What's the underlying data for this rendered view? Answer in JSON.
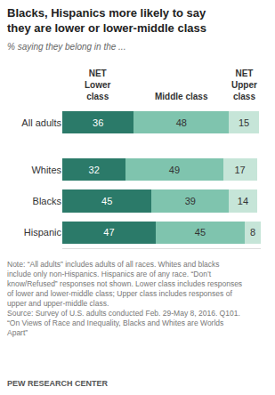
{
  "chart_data": {
    "type": "bar",
    "title": "Blacks, Hispanics more likely to say they are lower or lower-middle class",
    "subtitle": "% saying they belong in the ...",
    "categories": [
      "All adults",
      "Whites",
      "Blacks",
      "Hispanic"
    ],
    "series": [
      {
        "name": "NET Lower class",
        "color": "#2b7a69",
        "values": [
          36,
          32,
          45,
          47
        ]
      },
      {
        "name": "Middle class",
        "color": "#7fc4ae",
        "values": [
          48,
          49,
          39,
          45
        ]
      },
      {
        "name": "NET Upper class",
        "color": "#c6e5d8",
        "values": [
          15,
          17,
          14,
          8
        ]
      }
    ],
    "orientation": "horizontal",
    "stacked": true,
    "data_labels": true,
    "tick_labels": "y",
    "grid": false,
    "xlim": [
      0,
      100
    ],
    "note": "Note: “All adults” includes adults of all races. Whites and blacks include only non-Hispanics. Hispanics are of any race. “Don’t know/Refused” responses not shown. Lower class includes responses of lower and lower-middle class; Upper class includes responses of upper and upper-middle class.",
    "source": "Source: Survey of U.S. adults conducted Feb. 29-May 8, 2016. Q101.",
    "source_title": "“On Views of Race and Inequality, Blacks and Whites are Worlds Apart”",
    "credit": "PEW RESEARCH CENTER"
  }
}
